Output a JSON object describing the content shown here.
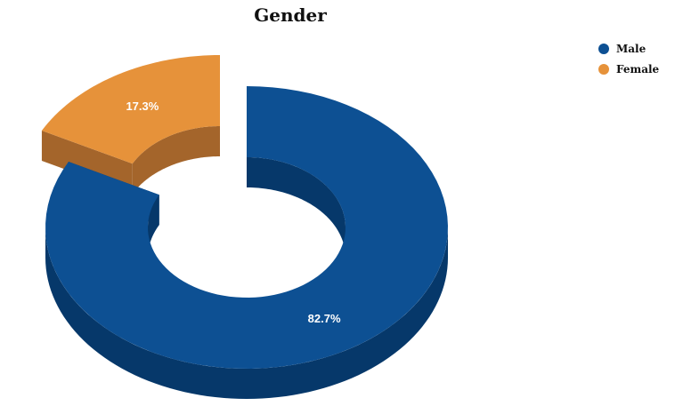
{
  "chart_data": {
    "type": "pie",
    "style": "3d-donut-exploded",
    "title": "Gender",
    "slices": [
      {
        "name": "Male",
        "value": 82.7,
        "label": "82.7%",
        "color": "#0d5093",
        "side_color": "#06386a",
        "exploded": false
      },
      {
        "name": "Female",
        "value": 17.3,
        "label": "17.3%",
        "color": "#e6923a",
        "side_color": "#a4652b",
        "exploded": true
      }
    ],
    "legend": {
      "position": "top-right",
      "items": [
        "Male",
        "Female"
      ]
    }
  }
}
